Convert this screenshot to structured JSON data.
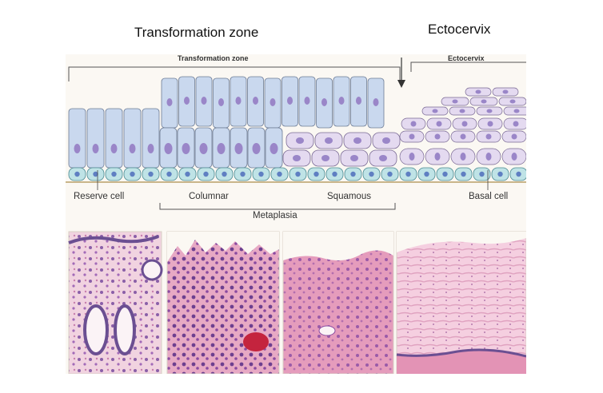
{
  "slide": {
    "title_left": "Transformation zone",
    "title_right": "Ectocervix"
  },
  "diagram": {
    "header_left": "Transformation zone",
    "header_right": "Ectocervix",
    "labels": {
      "reserve_cell": "Reserve cell",
      "columnar": "Columnar",
      "squamous": "Squamous",
      "metaplasia": "Metaplasia",
      "basal_cell": "Basal cell"
    },
    "colors": {
      "columnar_cell": "#c9d8ee",
      "nucleus": "#9a86c8",
      "squamous_cell": "#e4daf0",
      "basal_cell": "#bfe3e6",
      "basal_nucleus": "#5f7fc2",
      "histology_pink": "#d98cb0",
      "histology_purple": "#6b4f92"
    }
  }
}
